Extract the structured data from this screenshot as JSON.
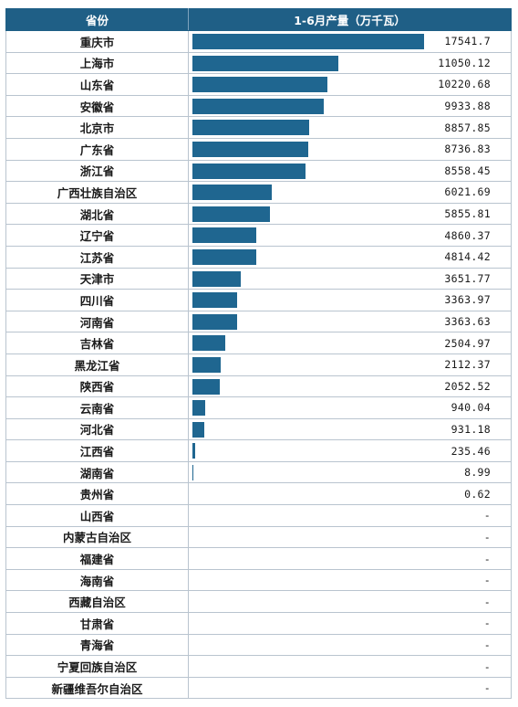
{
  "header": {
    "col_province": "省份",
    "col_value": "1-6月产量（万千瓦）"
  },
  "bar_color": "#1f6690",
  "header_color": "#1f5f86",
  "chart_data": {
    "type": "bar",
    "orientation": "horizontal",
    "categories": [
      "重庆市",
      "上海市",
      "山东省",
      "安徽省",
      "北京市",
      "广东省",
      "浙江省",
      "广西壮族自治区",
      "湖北省",
      "辽宁省",
      "江苏省",
      "天津市",
      "四川省",
      "河南省",
      "吉林省",
      "黑龙江省",
      "陕西省",
      "云南省",
      "河北省",
      "江西省",
      "湖南省",
      "贵州省",
      "山西省",
      "内蒙古自治区",
      "福建省",
      "海南省",
      "西藏自治区",
      "甘肃省",
      "青海省",
      "宁夏回族自治区",
      "新疆维吾尔自治区"
    ],
    "values": [
      17541.7,
      11050.12,
      10220.68,
      9933.88,
      8857.85,
      8736.83,
      8558.45,
      6021.69,
      5855.81,
      4860.37,
      4814.42,
      3651.77,
      3363.97,
      3363.63,
      2504.97,
      2112.37,
      2052.52,
      940.04,
      931.18,
      235.46,
      8.99,
      0.62,
      null,
      null,
      null,
      null,
      null,
      null,
      null,
      null,
      null
    ],
    "labels": [
      "17541.7",
      "11050.12",
      "10220.68",
      "9933.88",
      "8857.85",
      "8736.83",
      "8558.45",
      "6021.69",
      "5855.81",
      "4860.37",
      "4814.42",
      "3651.77",
      "3363.97",
      "3363.63",
      "2504.97",
      "2112.37",
      "2052.52",
      "940.04",
      "931.18",
      "235.46",
      "8.99",
      "0.62",
      "-",
      "-",
      "-",
      "-",
      "-",
      "-",
      "-",
      "-",
      "-"
    ],
    "xlim": [
      0,
      17541.7
    ],
    "ylabel": "1-6月产量（万千瓦）",
    "grid": false
  }
}
